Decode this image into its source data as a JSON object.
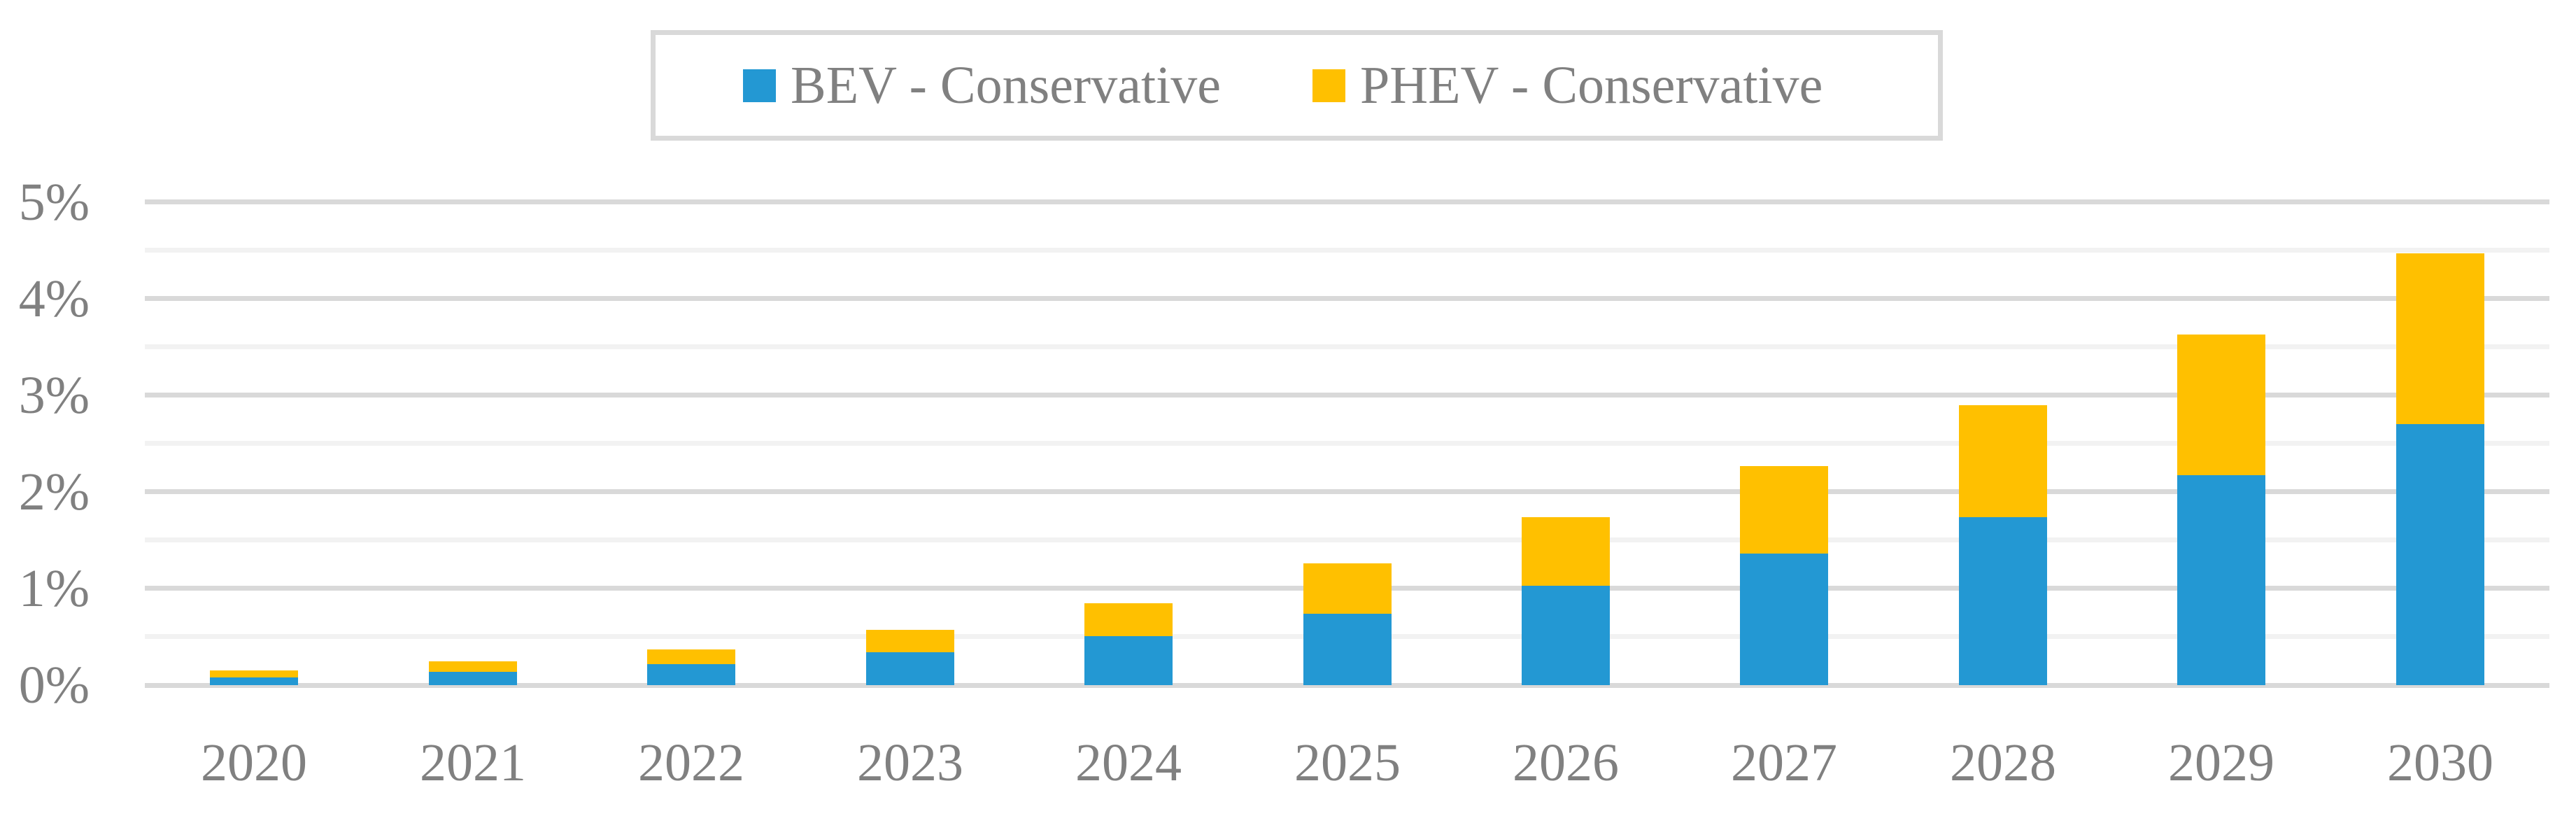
{
  "chart_data": {
    "type": "bar",
    "stacked": true,
    "title": "",
    "xlabel": "",
    "ylabel": "",
    "categories": [
      "2020",
      "2021",
      "2022",
      "2023",
      "2024",
      "2025",
      "2026",
      "2027",
      "2028",
      "2029",
      "2030"
    ],
    "series": [
      {
        "name": "BEV - Conservative",
        "color": "#2398d3",
        "values": [
          0.08,
          0.14,
          0.22,
          0.34,
          0.51,
          0.74,
          1.03,
          1.36,
          1.74,
          2.17,
          2.7
        ]
      },
      {
        "name": "PHEV - Conservative",
        "color": "#ffc000",
        "values": [
          0.07,
          0.11,
          0.15,
          0.23,
          0.34,
          0.52,
          0.71,
          0.91,
          1.16,
          1.46,
          1.77
        ]
      }
    ],
    "stack_totals": [
      0.15,
      0.25,
      0.37,
      0.57,
      0.85,
      1.26,
      1.74,
      2.27,
      2.9,
      3.63,
      4.47
    ],
    "ylim": [
      0,
      5
    ],
    "y_unit": "%",
    "y_major_step": 1,
    "y_minor_step": 0.5,
    "y_tick_labels": [
      "0%",
      "1%",
      "2%",
      "3%",
      "4%",
      "5%"
    ],
    "grid": true,
    "legend_position": "top-center"
  },
  "legend": {
    "bev_label": "BEV - Conservative",
    "phev_label": "PHEV - Conservative"
  },
  "colors": {
    "bev": "#2398d3",
    "phev": "#ffc000",
    "axis_text": "#808080",
    "grid_major": "#d9d9d9",
    "grid_minor": "#f2f2f2",
    "legend_border": "#d9d9d9",
    "background": "#ffffff"
  }
}
